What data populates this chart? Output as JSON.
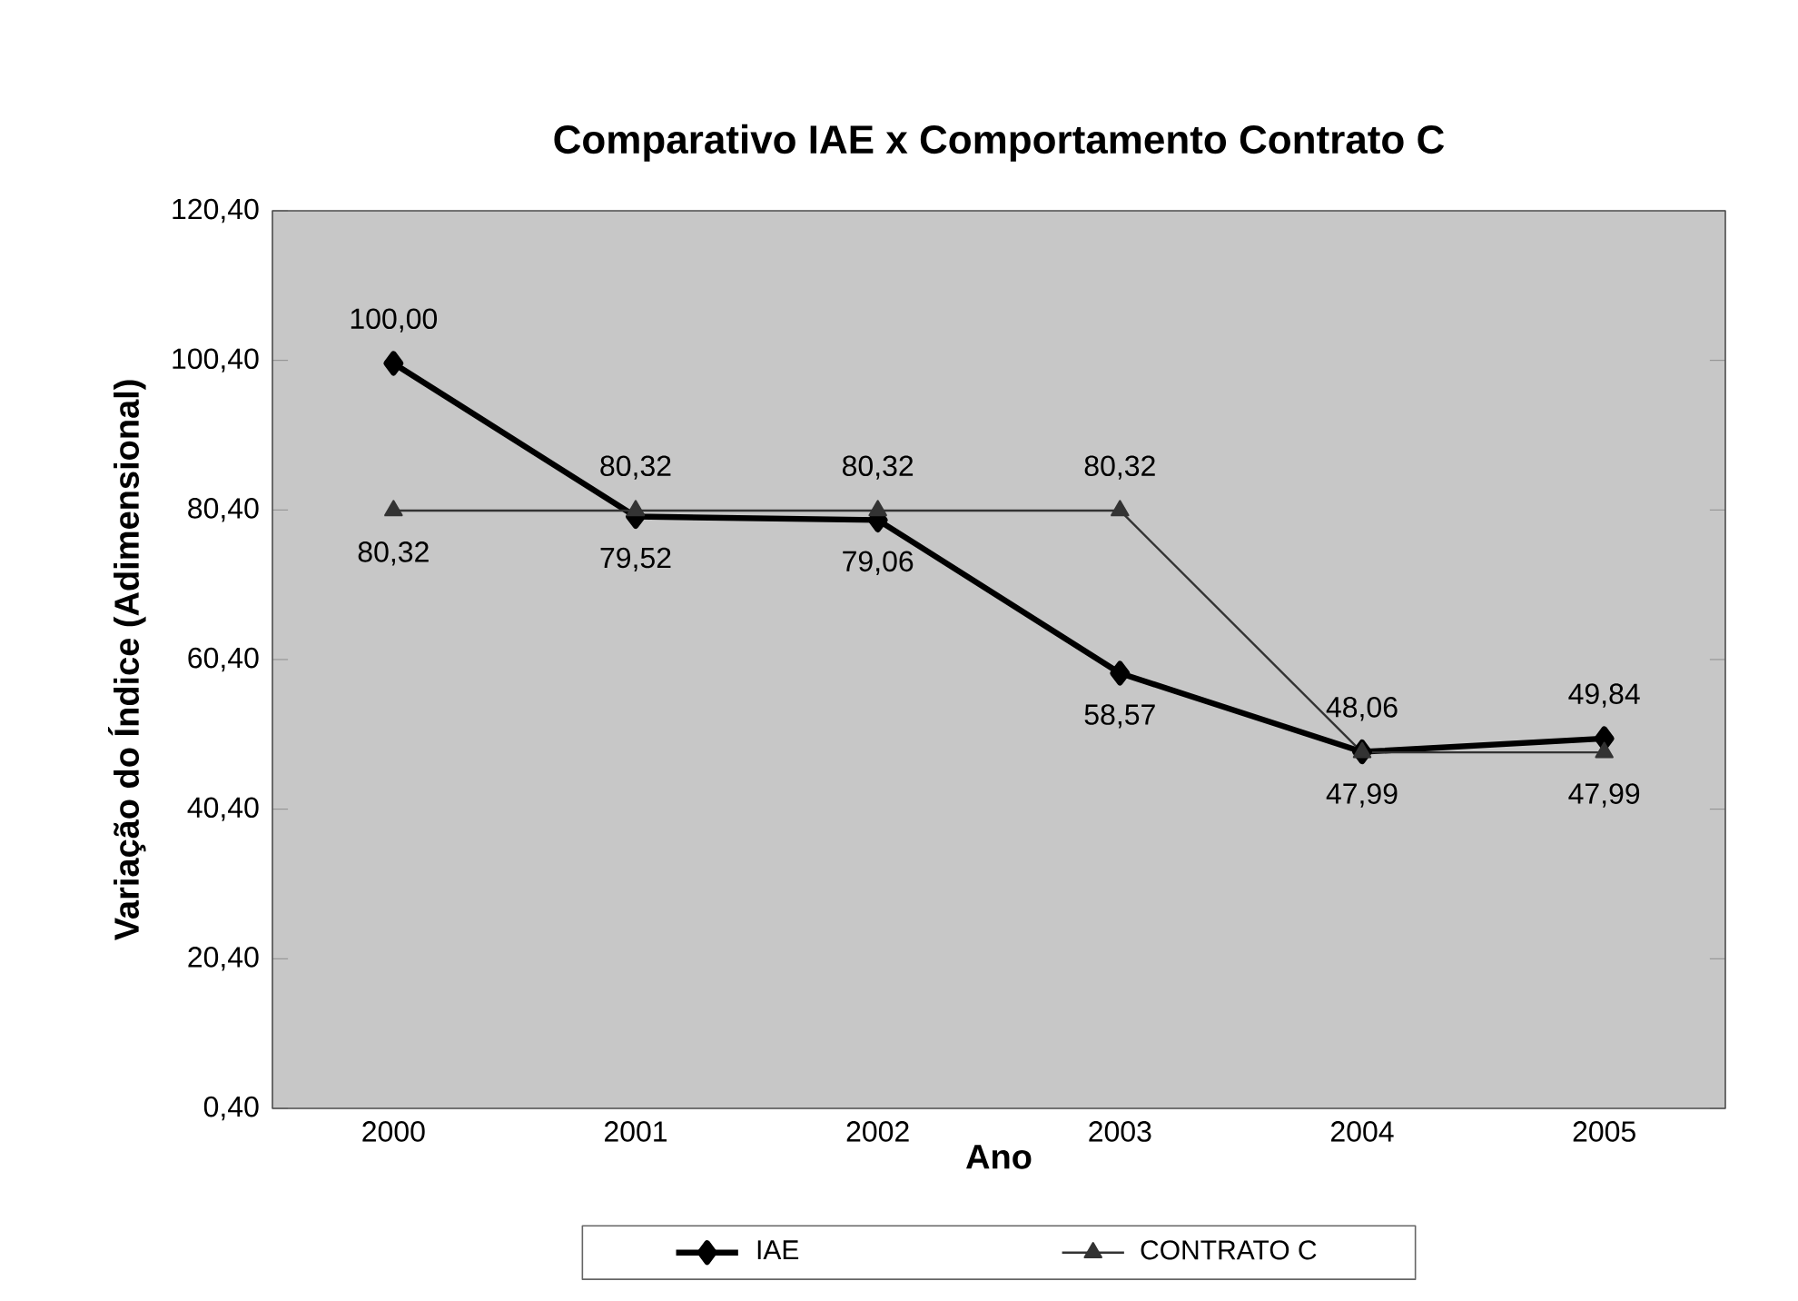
{
  "chart_data": {
    "type": "line",
    "title": "Comparativo IAE x Comportamento Contrato C",
    "xlabel": "Ano",
    "ylabel": "Variação do Índice (Adimensional)",
    "categories": [
      "2000",
      "2001",
      "2002",
      "2003",
      "2004",
      "2005"
    ],
    "series": [
      {
        "name": "IAE",
        "color": "#000000",
        "marker": "diamond",
        "values": [
          100.0,
          79.52,
          79.06,
          58.57,
          48.06,
          49.84
        ],
        "value_labels": [
          "100,00",
          "79,52",
          "79,06",
          "58,57",
          "48,06",
          "49,84"
        ]
      },
      {
        "name": "CONTRATO C",
        "color": "#333333",
        "marker": "triangle",
        "values": [
          80.32,
          80.32,
          80.32,
          80.32,
          47.99,
          47.99
        ],
        "value_labels": [
          "80,32",
          "80,32",
          "80,32",
          "80,32",
          "47,99",
          "47,99"
        ]
      }
    ],
    "ylim": [
      0.4,
      120.4
    ],
    "yticks": [
      {
        "value": 0.4,
        "label": "0,40"
      },
      {
        "value": 20.4,
        "label": "20,40"
      },
      {
        "value": 40.4,
        "label": "40,40"
      },
      {
        "value": 60.4,
        "label": "60,40"
      },
      {
        "value": 80.4,
        "label": "80,40"
      },
      {
        "value": 100.4,
        "label": "100,40"
      },
      {
        "value": 120.4,
        "label": "120,40"
      }
    ],
    "grid": false,
    "legend": "bottom",
    "line_style": "solid"
  }
}
